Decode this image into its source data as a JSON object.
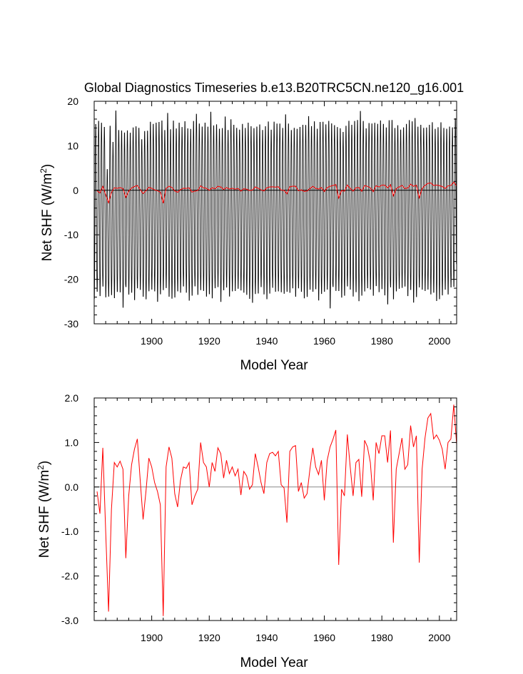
{
  "figure": {
    "title": "Global Diagnostics Timeseries b.e13.B20TRC5CN.ne120_g16.001"
  },
  "chart_data": [
    {
      "type": "line",
      "title": "Global Diagnostics Timeseries b.e13.B20TRC5CN.ne120_g16.001",
      "xlabel": "Model Year",
      "ylabel": "Net SHF (W/m²)",
      "xlim": [
        1880,
        2006
      ],
      "ylim": [
        -30,
        20
      ],
      "xticks": [
        1900,
        1920,
        1940,
        1960,
        1980,
        2000
      ],
      "yticks": [
        -30,
        -20,
        -10,
        0,
        10,
        20
      ],
      "ytick_labels": [
        "-30",
        "-20",
        "-10",
        "0",
        "10",
        "20"
      ],
      "reference_line": 0,
      "grid": false,
      "series": [
        {
          "kind": "monthly",
          "color": "#000000",
          "annual_max": [
            15.5,
            16.2,
            15.8,
            14.8,
            5.2,
            15.1,
            11.4,
            18.6,
            14.1,
            14.0,
            13.6,
            14.0,
            13.5,
            14.7,
            15.0,
            14.6,
            12.0,
            13.9,
            14.0,
            16.0,
            15.5,
            15.8,
            16.0,
            16.3,
            14.1,
            18.0,
            14.3,
            16.3,
            14.5,
            15.8,
            14.8,
            16.1,
            14.5,
            14.4,
            16.2,
            17.8,
            15.6,
            14.9,
            15.8,
            14.9,
            18.3,
            15.2,
            15.4,
            14.4,
            14.6,
            17.2,
            14.1,
            16.6,
            15.3,
            14.6,
            14.2,
            15.5,
            14.6,
            15.8,
            15.0,
            14.6,
            14.9,
            15.4,
            14.1,
            15.0,
            16.1,
            14.2,
            16.0,
            15.6,
            15.6,
            14.6,
            17.7,
            15.6,
            14.1,
            14.6,
            14.4,
            14.8,
            15.3,
            15.3,
            17.3,
            15.0,
            16.1,
            14.4,
            16.0,
            16.0,
            15.4,
            16.2,
            15.7,
            15.2,
            14.8,
            14.5,
            13.7,
            15.1,
            16.2,
            15.3,
            16.2,
            16.4,
            18.5,
            16.2,
            14.5,
            15.7,
            15.6,
            15.8,
            15.5,
            16.3,
            15.5,
            14.7,
            16.4,
            16.4,
            14.6,
            15.2,
            14.2,
            14.7,
            15.5,
            16.4,
            16.1,
            16.9,
            14.9,
            15.3,
            14.6,
            14.7,
            15.3,
            15.9,
            14.4,
            14.8,
            15.9,
            14.6,
            14.4,
            14.9,
            14.7,
            16.8
          ],
          "annual_min": [
            -25.0,
            -23.4,
            -24.4,
            -22.2,
            -24.5,
            -24.5,
            -24.1,
            -24.9,
            -23.4,
            -23.5,
            -27.0,
            -22.3,
            -24.0,
            -23.6,
            -25.3,
            -22.6,
            -22.9,
            -24.5,
            -25.1,
            -23.3,
            -22.9,
            -23.3,
            -25.7,
            -24.0,
            -23.0,
            -22.6,
            -24.5,
            -25.0,
            -24.7,
            -23.3,
            -23.6,
            -22.2,
            -23.6,
            -25.4,
            -24.3,
            -22.2,
            -24.1,
            -23.0,
            -23.2,
            -24.5,
            -24.0,
            -24.9,
            -22.6,
            -22.3,
            -25.7,
            -23.1,
            -22.4,
            -24.5,
            -23.3,
            -23.2,
            -22.7,
            -23.1,
            -23.6,
            -24.1,
            -25.0,
            -25.9,
            -23.9,
            -23.8,
            -22.3,
            -24.0,
            -25.1,
            -23.8,
            -22.5,
            -23.4,
            -23.3,
            -23.5,
            -23.9,
            -23.4,
            -23.6,
            -22.6,
            -24.5,
            -22.6,
            -23.4,
            -24.9,
            -24.6,
            -22.9,
            -23.4,
            -22.8,
            -25.4,
            -23.9,
            -23.4,
            -22.9,
            -27.2,
            -22.3,
            -23.2,
            -23.2,
            -24.7,
            -24.3,
            -22.2,
            -22.9,
            -24.5,
            -23.5,
            -25.6,
            -24.3,
            -23.3,
            -22.6,
            -22.9,
            -24.3,
            -22.1,
            -23.5,
            -22.8,
            -24.2,
            -26.3,
            -22.4,
            -25.1,
            -23.3,
            -22.7,
            -22.5,
            -22.2,
            -24.4,
            -23.0,
            -25.9,
            -24.6,
            -22.4,
            -22.9,
            -23.2,
            -22.9,
            -24.0,
            -23.6,
            -25.5,
            -25.1,
            -24.2,
            -22.9,
            -24.0,
            -22.4,
            -22.3
          ]
        },
        {
          "kind": "annual",
          "color": "#ff0000",
          "x": [
            1881,
            1882,
            1883,
            1884,
            1885,
            1886,
            1887,
            1888,
            1889,
            1890,
            1891,
            1892,
            1893,
            1894,
            1895,
            1896,
            1897,
            1898,
            1899,
            1900,
            1901,
            1902,
            1903,
            1904,
            1905,
            1906,
            1907,
            1908,
            1909,
            1910,
            1911,
            1912,
            1913,
            1914,
            1915,
            1916,
            1917,
            1918,
            1919,
            1920,
            1921,
            1922,
            1923,
            1924,
            1925,
            1926,
            1927,
            1928,
            1929,
            1930,
            1931,
            1932,
            1933,
            1934,
            1935,
            1936,
            1937,
            1938,
            1939,
            1940,
            1941,
            1942,
            1943,
            1944,
            1945,
            1946,
            1947,
            1948,
            1949,
            1950,
            1951,
            1952,
            1953,
            1954,
            1955,
            1956,
            1957,
            1958,
            1959,
            1960,
            1961,
            1962,
            1963,
            1964,
            1965,
            1966,
            1967,
            1968,
            1969,
            1970,
            1971,
            1972,
            1973,
            1974,
            1975,
            1976,
            1977,
            1978,
            1979,
            1980,
            1981,
            1982,
            1983,
            1984,
            1985,
            1986,
            1987,
            1988,
            1989,
            1990,
            1991,
            1992,
            1993,
            1994,
            1995,
            1996,
            1997,
            1998,
            1999,
            2000,
            2001,
            2002,
            2003,
            2004,
            2005,
            2006
          ],
          "y": [
            -0.1,
            -0.6,
            0.88,
            -1.0,
            -2.8,
            -0.5,
            0.55,
            0.45,
            0.58,
            0.4,
            -1.6,
            -0.2,
            0.5,
            0.85,
            1.08,
            0.15,
            -0.73,
            -0.1,
            0.65,
            0.45,
            0.1,
            -0.1,
            -0.4,
            -2.9,
            0.45,
            0.9,
            0.65,
            -0.15,
            -0.45,
            0.15,
            0.45,
            0.42,
            0.55,
            -0.4,
            -0.2,
            -0.05,
            1.0,
            0.55,
            0.45,
            0.0,
            0.55,
            0.35,
            0.88,
            0.75,
            0.2,
            0.6,
            0.3,
            0.45,
            0.25,
            0.4,
            -0.18,
            0.35,
            0.25,
            -0.05,
            0.05,
            0.75,
            0.45,
            0.1,
            -0.15,
            0.55,
            0.75,
            0.78,
            0.7,
            0.8,
            0.05,
            -0.02,
            -0.8,
            0.8,
            0.9,
            0.93,
            -0.1,
            0.1,
            -0.25,
            -0.15,
            0.4,
            0.88,
            0.45,
            0.28,
            0.6,
            -0.3,
            0.6,
            0.9,
            1.07,
            1.28,
            -1.75,
            -0.05,
            -0.2,
            1.18,
            0.45,
            -0.2,
            0.55,
            0.62,
            -0.22,
            1.05,
            0.9,
            0.55,
            -0.3,
            1.0,
            0.75,
            1.15,
            1.15,
            0.55,
            1.27,
            -1.25,
            0.4,
            0.75,
            1.1,
            0.4,
            0.5,
            1.38,
            0.9,
            1.15,
            -1.7,
            0.4,
            1.1,
            1.55,
            1.65,
            1.08,
            1.17,
            1.05,
            0.85,
            0.4,
            1.0,
            1.08,
            1.85,
            0.95
          ]
        }
      ]
    },
    {
      "type": "line",
      "title": "",
      "xlabel": "Model Year",
      "ylabel": "Net SHF (W/m²)",
      "xlim": [
        1880,
        2006
      ],
      "ylim": [
        -3.0,
        2.0
      ],
      "xticks": [
        1900,
        1920,
        1940,
        1960,
        1980,
        2000
      ],
      "yticks": [
        -3.0,
        -2.0,
        -1.0,
        0.0,
        1.0,
        2.0
      ],
      "ytick_labels": [
        "-3.0",
        "-2.0",
        "-1.0",
        "0.0",
        "1.0",
        "2.0"
      ],
      "reference_line": 0,
      "grid": false,
      "series": [
        {
          "kind": "annual",
          "color": "#ff0000",
          "same_as": "top_annual"
        }
      ]
    }
  ]
}
